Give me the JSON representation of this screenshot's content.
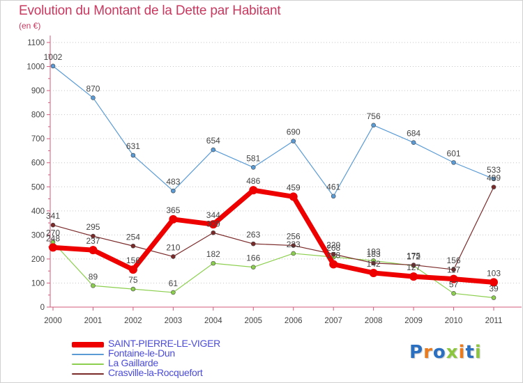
{
  "header": {
    "title": "Evolution du Montant de la Dette par Habitant",
    "subtitle": "(en €)"
  },
  "logo": {
    "text": "Proxiti",
    "colors": [
      "#2a6fc0",
      "#e87a1f",
      "#2a6fc0",
      "#8cc63e",
      "#e87a1f",
      "#2a6fc0",
      "#8cc63e"
    ]
  },
  "chart_data": {
    "type": "line",
    "title": "Evolution du Montant de la Dette par Habitant",
    "ylabel": "(en €)",
    "xlabel": "",
    "ylim": [
      0,
      1100
    ],
    "yticks": [
      "0",
      "100",
      "200",
      "300",
      "400",
      "500",
      "600",
      "700",
      "800",
      "900",
      "1000",
      "1100"
    ],
    "x": [
      "2000",
      "2001",
      "2002",
      "2003",
      "2004",
      "2005",
      "2006",
      "2007",
      "2008",
      "2009",
      "2010",
      "2011"
    ],
    "grid": "horizontal dotted",
    "legend": "bottom-left",
    "series": [
      {
        "name": "Fontaine-le-Dun",
        "color": "#5a9bd5",
        "values": [
          1002,
          870,
          631,
          483,
          654,
          581,
          690,
          461,
          756,
          684,
          601,
          533
        ],
        "labels": [
          "1002",
          "870",
          "631",
          "483",
          "654",
          "581",
          "690",
          "461",
          "756",
          "684",
          "601",
          "533"
        ]
      },
      {
        "name": "La Gaillarde",
        "color": "#8ccf4e",
        "values": [
          270,
          89,
          75,
          61,
          182,
          166,
          223,
          208,
          193,
          172,
          57,
          39
        ],
        "labels": [
          "270",
          "89",
          "75",
          "61",
          "182",
          "166",
          "223",
          "208",
          "193",
          "172",
          "57",
          "39"
        ]
      },
      {
        "name": "Crasville-la-Rocquefort",
        "color": "#7b2a2a",
        "values": [
          341,
          295,
          254,
          210,
          309,
          263,
          256,
          220,
          183,
          175,
          156,
          499
        ],
        "labels": [
          "341",
          "295",
          "254",
          "210",
          "309",
          "263",
          "256",
          "220",
          "183",
          "175",
          "156",
          "499"
        ]
      },
      {
        "name": "SAINT-PIERRE-LE-VIGER",
        "color": "#ee0000",
        "values": [
          248,
          237,
          156,
          365,
          344,
          486,
          459,
          178,
          142,
          127,
          117,
          103
        ],
        "labels": [
          "248",
          "237",
          "156",
          "365",
          "344",
          "486",
          "459",
          "178",
          "142",
          "127",
          "117",
          "103"
        ]
      }
    ],
    "legend_entries": [
      {
        "name": "SAINT-PIERRE-LE-VIGER",
        "color": "#ee0000",
        "text_color": "#4b4bd8",
        "thick": true
      },
      {
        "name": "Fontaine-le-Dun",
        "color": "#5a9bd5",
        "text_color": "#4b4bd8",
        "thick": false
      },
      {
        "name": "La Gaillarde",
        "color": "#8ccf4e",
        "text_color": "#4b4bd8",
        "thick": false
      },
      {
        "name": "Crasville-la-Rocquefort",
        "color": "#7b2a2a",
        "text_color": "#4b4bd8",
        "thick": false
      }
    ]
  }
}
